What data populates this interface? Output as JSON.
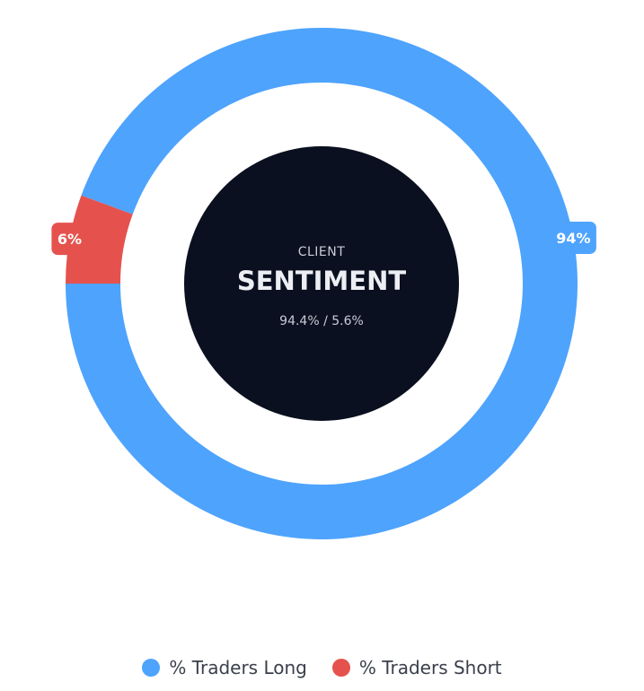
{
  "chart_data": {
    "type": "pie",
    "variant": "donut",
    "series": [
      {
        "name": "% Traders Long",
        "value": 94.4,
        "label": "94%",
        "color": "#4ea3fd"
      },
      {
        "name": "% Traders Short",
        "value": 5.6,
        "label": "6%",
        "color": "#e5524e"
      }
    ],
    "center": {
      "line1": "CLIENT",
      "line2": "SENTIMENT",
      "line3": "94.4% / 5.6%",
      "background": "#0b1020"
    },
    "legend_position": "bottom"
  }
}
